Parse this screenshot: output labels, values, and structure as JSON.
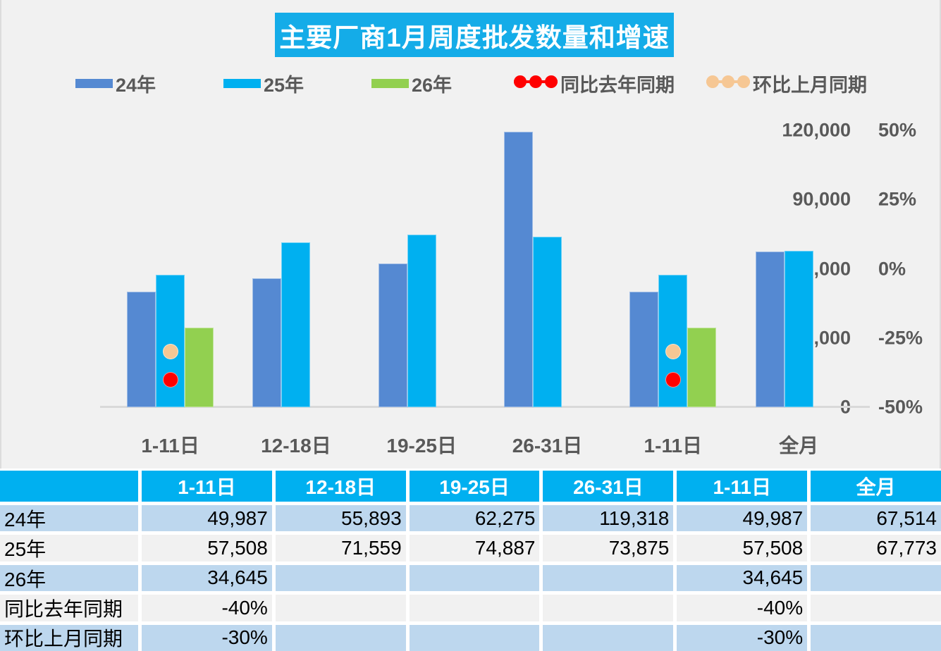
{
  "title": "主要厂商1月周度批发数量和增速",
  "legend": [
    {
      "label": "24年",
      "marker": "bar",
      "color": "#5589D2"
    },
    {
      "label": "25年",
      "marker": "bar",
      "color": "#00B0F0"
    },
    {
      "label": "26年",
      "marker": "bar",
      "color": "#92D050"
    },
    {
      "label": "同比去年同期",
      "marker": "line-dots",
      "color": "#FF0000"
    },
    {
      "label": "环比上月同期",
      "marker": "line-dots",
      "color": "#F6C794"
    }
  ],
  "chart_data": {
    "type": "bar",
    "title": "主要厂商1月周度批发数量和增速",
    "categories": [
      "1-11日",
      "12-18日",
      "19-25日",
      "26-31日",
      "1-11日",
      "全月"
    ],
    "series": [
      {
        "name": "24年",
        "type": "bar",
        "axis": "left",
        "color": "#5589D2",
        "values": [
          49987,
          55893,
          62275,
          119318,
          49987,
          67514
        ]
      },
      {
        "name": "25年",
        "type": "bar",
        "axis": "left",
        "color": "#00B0F0",
        "values": [
          57508,
          71559,
          74887,
          73875,
          57508,
          67773
        ]
      },
      {
        "name": "26年",
        "type": "bar",
        "axis": "left",
        "color": "#92D050",
        "values": [
          34645,
          null,
          null,
          null,
          34645,
          null
        ]
      },
      {
        "name": "同比去年同期",
        "type": "point",
        "axis": "right",
        "color": "#FF0000",
        "values": [
          -40,
          null,
          null,
          null,
          -40,
          null
        ]
      },
      {
        "name": "环比上月同期",
        "type": "point",
        "axis": "right",
        "color": "#F6C794",
        "values": [
          -30,
          null,
          null,
          null,
          -30,
          null
        ]
      }
    ],
    "left_axis": {
      "tick_labels": [
        "120,000",
        "90,000",
        "60,000",
        "30,000",
        "0"
      ],
      "min": 0,
      "max": 120000
    },
    "right_axis": {
      "tick_labels": [
        "50%",
        "25%",
        "0%",
        "-25%",
        "-50%"
      ],
      "min": -50,
      "max": 50
    },
    "grid": "off",
    "legend_position": "top"
  },
  "table": {
    "header": [
      "",
      "1-11日",
      "12-18日",
      "19-25日",
      "26-31日",
      "1-11日",
      "全月"
    ],
    "rows": [
      {
        "label": "24年",
        "values": [
          "49,987",
          "55,893",
          "62,275",
          "119,318",
          "49,987",
          "67,514"
        ]
      },
      {
        "label": "25年",
        "values": [
          "57,508",
          "71,559",
          "74,887",
          "73,875",
          "57,508",
          "67,773"
        ]
      },
      {
        "label": "26年",
        "values": [
          "34,645",
          "",
          "",
          "",
          "34,645",
          ""
        ]
      },
      {
        "label": "同比去年同期",
        "values": [
          "-40%",
          "",
          "",
          "",
          "-40%",
          ""
        ]
      },
      {
        "label": "环比上月同期",
        "values": [
          "-30%",
          "",
          "",
          "",
          "-30%",
          ""
        ]
      }
    ]
  },
  "colors": {
    "title_bg": "#14ACE8",
    "bar_24": "#5589D2",
    "bar_25": "#00B0F0",
    "bar_26": "#92D050",
    "yoy_dot": "#FF0000",
    "mom_dot": "#F6C794",
    "table_header_bg": "#00B0F0",
    "table_row_blue": "#BDD7EE",
    "table_row_gray": "#F1F1F1",
    "axis_text": "#595959",
    "background": "#F1F1F1",
    "axis_line": "#D9D9D9"
  }
}
